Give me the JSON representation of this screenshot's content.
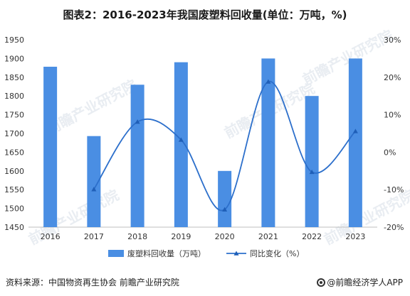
{
  "chart_data": {
    "type": "bar",
    "title": "图表2：2016-2023年我国废塑料回收量(单位：万吨，%)",
    "categories": [
      "2016",
      "2017",
      "2018",
      "2019",
      "2020",
      "2021",
      "2022",
      "2023"
    ],
    "series": [
      {
        "name": "废塑料回收量（万吨）",
        "type": "bar",
        "axis": "left",
        "color": "#4a8ee3",
        "values": [
          1878,
          1693,
          1830,
          1890,
          1600,
          1900,
          1800,
          1900
        ]
      },
      {
        "name": "同比变化（%）",
        "type": "line",
        "axis": "right",
        "color": "#2c6fcb",
        "values": [
          null,
          -9.9,
          8.1,
          3.3,
          -15.3,
          18.8,
          -5.3,
          5.6
        ]
      }
    ],
    "y_left": {
      "min": 1450,
      "max": 1950,
      "ticks": [
        "1450",
        "1500",
        "1550",
        "1600",
        "1650",
        "1700",
        "1750",
        "1800",
        "1850",
        "1900",
        "1950"
      ]
    },
    "y_right": {
      "min": -20,
      "max": 30,
      "ticks": [
        "-20%",
        "-10%",
        "0%",
        "10%",
        "20%",
        "30%"
      ]
    },
    "grid": false,
    "legend_position": "bottom"
  },
  "footer": {
    "source": "资料来源：中国物资再生协会 前瞻产业研究院",
    "brand": "@前瞻经济学人APP"
  },
  "watermark": "前瞻产业研究院"
}
